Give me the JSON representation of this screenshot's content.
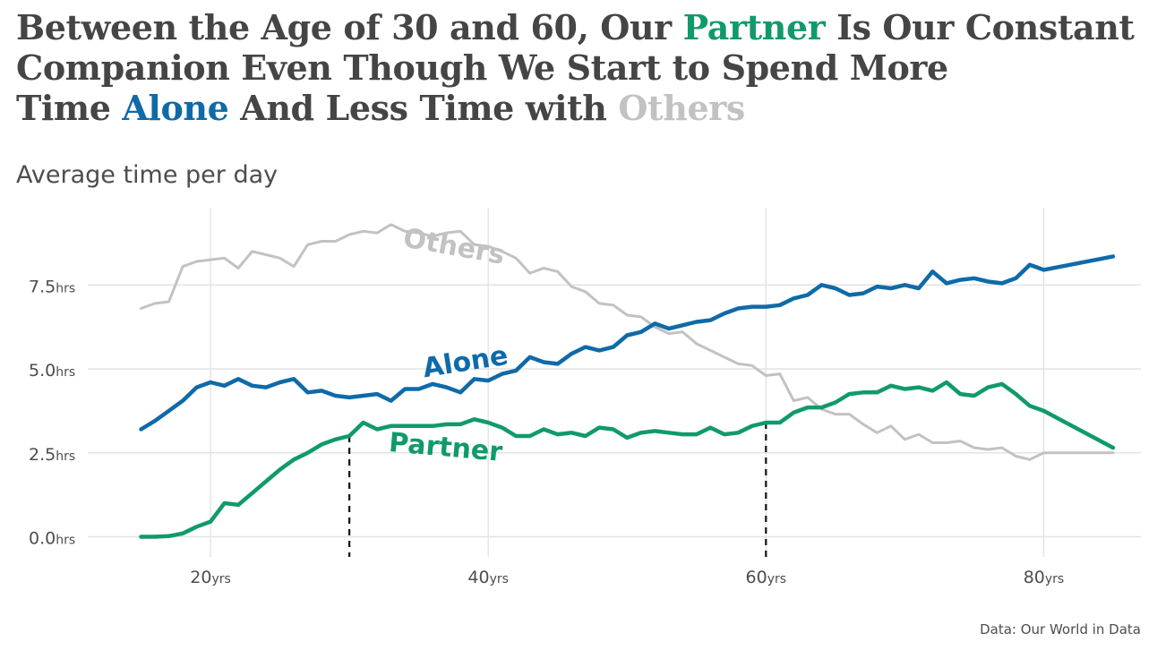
{
  "title": {
    "line1_a": "Between the Age of 30 and 60, Our ",
    "line1_b": "Partner",
    "line1_c": " Is Our Constant",
    "line2": "Companion Even Though We Start to Spend More",
    "line3_a": "Time ",
    "line3_b": "Alone",
    "line3_c": " And Less Time with ",
    "line3_d": "Others"
  },
  "subtitle": "Average time per day",
  "caption": "Data: Our World in Data",
  "colors": {
    "partner": "#109a6c",
    "alone": "#0f6aa8",
    "others": "#c2c2c2",
    "title": "#454545",
    "grid": "#e3e3e3"
  },
  "chart_data": {
    "type": "line",
    "xlim": [
      10,
      87
    ],
    "ylim": [
      -0.6,
      9.8
    ],
    "x_ticks": [
      {
        "value": 20,
        "num": "20",
        "unit": "yrs"
      },
      {
        "value": 40,
        "num": "40",
        "unit": "yrs"
      },
      {
        "value": 60,
        "num": "60",
        "unit": "yrs"
      },
      {
        "value": 80,
        "num": "80",
        "unit": "yrs"
      }
    ],
    "y_ticks": [
      {
        "value": 0,
        "num": "0.0",
        "unit": "hrs"
      },
      {
        "value": 2.5,
        "num": "2.5",
        "unit": "hrs"
      },
      {
        "value": 5,
        "num": "5.0",
        "unit": "hrs"
      },
      {
        "value": 7.5,
        "num": "7.5",
        "unit": "hrs"
      }
    ],
    "reference_lines": [
      {
        "x": 30,
        "y": 3.0
      },
      {
        "x": 60,
        "y": 3.4
      }
    ],
    "series": [
      {
        "name": "Others",
        "x": [
          15,
          16,
          17,
          18,
          19,
          20,
          21,
          22,
          23,
          24,
          25,
          26,
          27,
          28,
          29,
          30,
          31,
          32,
          33,
          34,
          35,
          36,
          37,
          38,
          39,
          40,
          41,
          42,
          43,
          44,
          45,
          46,
          47,
          48,
          49,
          50,
          51,
          52,
          53,
          54,
          55,
          56,
          57,
          58,
          59,
          60,
          61,
          62,
          63,
          64,
          65,
          66,
          67,
          68,
          69,
          70,
          71,
          72,
          73,
          74,
          75,
          76,
          77,
          78,
          79,
          80,
          85
        ],
        "y": [
          6.8,
          6.95,
          7.0,
          8.05,
          8.2,
          8.25,
          8.3,
          8.0,
          8.5,
          8.4,
          8.3,
          8.05,
          8.7,
          8.8,
          8.8,
          9.0,
          9.1,
          9.05,
          9.3,
          9.1,
          9.05,
          8.95,
          9.05,
          9.1,
          8.7,
          8.65,
          8.5,
          8.3,
          7.85,
          8.0,
          7.9,
          7.45,
          7.3,
          6.95,
          6.9,
          6.6,
          6.55,
          6.25,
          6.05,
          6.1,
          5.75,
          5.55,
          5.35,
          5.15,
          5.1,
          4.8,
          4.85,
          4.05,
          4.15,
          3.8,
          3.65,
          3.65,
          3.35,
          3.1,
          3.3,
          2.9,
          3.05,
          2.8,
          2.8,
          2.85,
          2.65,
          2.6,
          2.65,
          2.4,
          2.3,
          2.5,
          2.5
        ]
      },
      {
        "name": "Alone",
        "x": [
          15,
          16,
          17,
          18,
          19,
          20,
          21,
          22,
          23,
          24,
          25,
          26,
          27,
          28,
          29,
          30,
          31,
          32,
          33,
          34,
          35,
          36,
          37,
          38,
          39,
          40,
          41,
          42,
          43,
          44,
          45,
          46,
          47,
          48,
          49,
          50,
          51,
          52,
          53,
          54,
          55,
          56,
          57,
          58,
          59,
          60,
          61,
          62,
          63,
          64,
          65,
          66,
          67,
          68,
          69,
          70,
          71,
          72,
          73,
          74,
          75,
          76,
          77,
          78,
          79,
          80,
          85
        ],
        "y": [
          3.2,
          3.45,
          3.75,
          4.05,
          4.45,
          4.6,
          4.5,
          4.7,
          4.5,
          4.45,
          4.6,
          4.7,
          4.3,
          4.35,
          4.2,
          4.15,
          4.2,
          4.25,
          4.05,
          4.4,
          4.4,
          4.55,
          4.45,
          4.3,
          4.7,
          4.65,
          4.85,
          4.95,
          5.35,
          5.2,
          5.15,
          5.45,
          5.65,
          5.55,
          5.65,
          6.0,
          6.1,
          6.35,
          6.2,
          6.3,
          6.4,
          6.45,
          6.65,
          6.8,
          6.85,
          6.85,
          6.9,
          7.1,
          7.2,
          7.5,
          7.4,
          7.2,
          7.25,
          7.45,
          7.4,
          7.5,
          7.4,
          7.9,
          7.55,
          7.65,
          7.7,
          7.6,
          7.55,
          7.7,
          8.1,
          7.95,
          8.35
        ]
      },
      {
        "name": "Partner",
        "x": [
          15,
          16,
          17,
          18,
          19,
          20,
          21,
          22,
          23,
          24,
          25,
          26,
          27,
          28,
          29,
          30,
          31,
          32,
          33,
          34,
          35,
          36,
          37,
          38,
          39,
          40,
          41,
          42,
          43,
          44,
          45,
          46,
          47,
          48,
          49,
          50,
          51,
          52,
          53,
          54,
          55,
          56,
          57,
          58,
          59,
          60,
          61,
          62,
          63,
          64,
          65,
          66,
          67,
          68,
          69,
          70,
          71,
          72,
          73,
          74,
          75,
          76,
          77,
          78,
          79,
          80,
          85
        ],
        "y": [
          0.0,
          0.0,
          0.02,
          0.1,
          0.3,
          0.45,
          1.0,
          0.95,
          1.3,
          1.65,
          2.0,
          2.3,
          2.5,
          2.75,
          2.9,
          3.0,
          3.4,
          3.2,
          3.3,
          3.3,
          3.3,
          3.3,
          3.35,
          3.35,
          3.5,
          3.4,
          3.25,
          3.0,
          3.0,
          3.2,
          3.05,
          3.1,
          3.0,
          3.25,
          3.2,
          2.95,
          3.1,
          3.15,
          3.1,
          3.05,
          3.05,
          3.25,
          3.05,
          3.1,
          3.3,
          3.4,
          3.4,
          3.7,
          3.85,
          3.85,
          4.0,
          4.25,
          4.3,
          4.3,
          4.5,
          4.4,
          4.45,
          4.35,
          4.6,
          4.25,
          4.2,
          4.45,
          4.55,
          4.25,
          3.9,
          3.75,
          2.65
        ]
      }
    ],
    "annotations": [
      {
        "text": "Others",
        "x": 33.8,
        "y": 8.65,
        "angle": 10,
        "series": "others"
      },
      {
        "text": "Alone",
        "x": 35.4,
        "y": 4.75,
        "angle": -9,
        "series": "alone"
      },
      {
        "text": "Partner",
        "x": 32.8,
        "y": 2.55,
        "angle": 5,
        "series": "partner"
      }
    ]
  }
}
